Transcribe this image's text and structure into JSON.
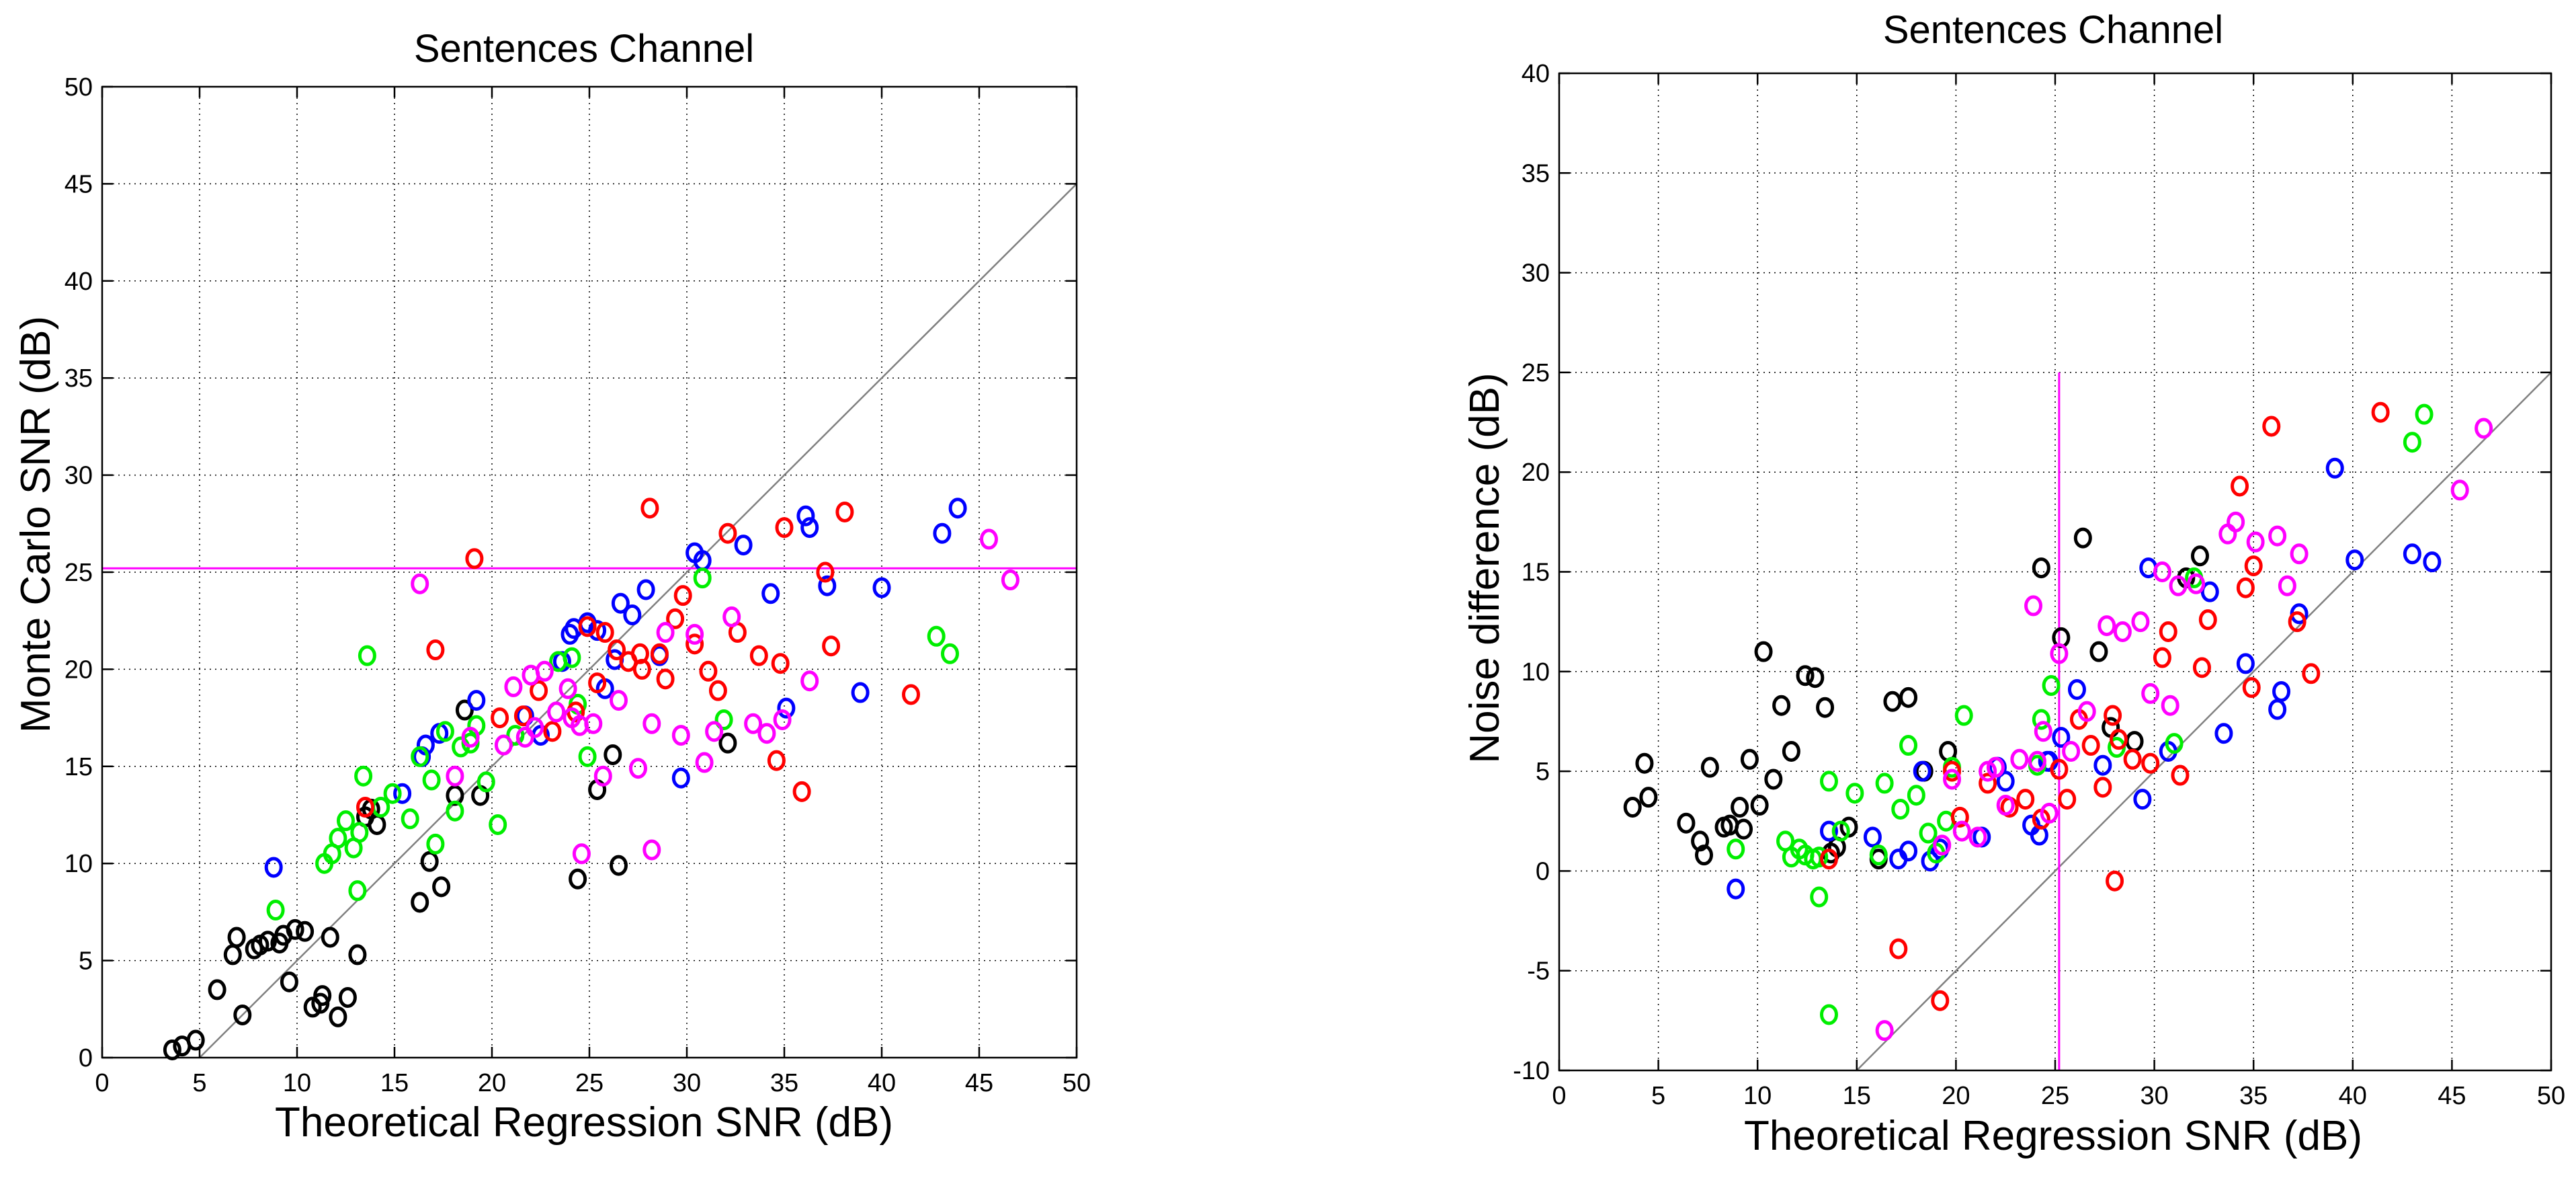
{
  "chart_data": [
    {
      "type": "scatter",
      "title": "Sentences Channel",
      "xlabel": "Theoretical Regression SNR (dB)",
      "ylabel": "Monte Carlo SNR (dB)",
      "xlim": [
        0,
        50
      ],
      "ylim": [
        0,
        50
      ],
      "xticks": [
        0,
        5,
        10,
        15,
        20,
        25,
        30,
        35,
        40,
        45,
        50
      ],
      "yticks": [
        0,
        5,
        10,
        15,
        20,
        25,
        30,
        35,
        40,
        45,
        50
      ],
      "grid": true,
      "marker": "circle",
      "colors": {
        "black": "#000000",
        "blue": "#0000ff",
        "green": "#00ee00",
        "red": "#ff0000",
        "magenta": "#ff00ff",
        "reference": "#808080"
      },
      "reference_line": {
        "x": [
          5,
          50
        ],
        "y": [
          0,
          45
        ]
      },
      "hline": {
        "y": 25.2,
        "color": "#ff00ff"
      },
      "series": [
        {
          "name": "black",
          "x": [
            3.6,
            4.1,
            4.8,
            5.9,
            6.7,
            6.9,
            7.2,
            7.8,
            8.1,
            8.5,
            9.1,
            9.3,
            9.6,
            9.9,
            10.4,
            10.8,
            11.3,
            11.7,
            12.1,
            12.6,
            13.1,
            13.5,
            14.1,
            16.3,
            16.8,
            17.4,
            18.1,
            18.6,
            19.4,
            25.4,
            26.2,
            26.5,
            32.1,
            24.4,
            13.8,
            11.2
          ],
          "y": [
            0.4,
            0.6,
            0.9,
            3.5,
            5.3,
            6.2,
            2.2,
            5.6,
            5.8,
            6.0,
            5.9,
            6.3,
            3.9,
            6.6,
            6.5,
            2.6,
            3.2,
            6.2,
            2.1,
            3.1,
            5.3,
            12.4,
            12.0,
            8.0,
            10.1,
            8.8,
            13.5,
            17.9,
            13.5,
            13.8,
            15.6,
            9.9,
            16.2,
            9.2,
            12.8,
            2.8
          ]
        },
        {
          "name": "blue",
          "x": [
            8.8,
            15.4,
            16.6,
            17.3,
            19.2,
            21.7,
            22.5,
            23.6,
            24.0,
            24.9,
            25.4,
            25.8,
            26.3,
            26.6,
            27.2,
            27.9,
            29.7,
            30.4,
            30.8,
            32.9,
            34.3,
            35.1,
            36.1,
            36.3,
            37.2,
            38.9,
            40.0,
            43.1,
            43.9,
            16.4,
            24.2,
            28.6
          ],
          "y": [
            9.8,
            13.6,
            16.1,
            16.7,
            18.4,
            17.6,
            16.6,
            20.4,
            21.8,
            22.4,
            22.0,
            19.0,
            20.5,
            23.4,
            22.8,
            24.1,
            14.4,
            26.0,
            25.6,
            26.4,
            23.9,
            18.0,
            27.9,
            27.3,
            24.3,
            18.8,
            24.2,
            27.0,
            28.3,
            15.5,
            22.1,
            20.7
          ]
        },
        {
          "name": "green",
          "x": [
            8.9,
            11.4,
            11.8,
            12.1,
            12.5,
            12.9,
            13.1,
            13.4,
            13.6,
            14.3,
            14.9,
            15.8,
            16.3,
            16.9,
            17.6,
            18.1,
            18.4,
            18.9,
            19.2,
            19.7,
            20.3,
            21.2,
            23.4,
            24.1,
            24.4,
            24.9,
            30.8,
            31.9,
            42.8,
            43.5,
            13.2,
            17.1
          ],
          "y": [
            7.6,
            10.0,
            10.5,
            11.3,
            12.2,
            10.8,
            8.6,
            14.5,
            20.7,
            12.9,
            13.6,
            12.3,
            15.5,
            14.3,
            16.8,
            12.7,
            16.0,
            16.2,
            17.1,
            14.2,
            12.0,
            16.6,
            20.4,
            20.6,
            18.2,
            15.5,
            24.7,
            17.4,
            21.7,
            20.8,
            11.6,
            11.0
          ]
        },
        {
          "name": "red",
          "x": [
            13.5,
            17.1,
            19.1,
            20.4,
            21.6,
            22.4,
            23.1,
            24.3,
            24.9,
            25.4,
            25.8,
            26.4,
            27.0,
            27.7,
            28.1,
            28.6,
            29.4,
            29.8,
            30.4,
            31.1,
            31.6,
            32.1,
            32.6,
            33.7,
            34.6,
            34.8,
            35.0,
            35.9,
            37.1,
            37.4,
            38.1,
            41.5,
            27.6,
            28.9
          ],
          "y": [
            12.9,
            21.0,
            25.7,
            17.5,
            17.6,
            18.9,
            16.8,
            17.8,
            22.2,
            19.3,
            21.9,
            21.0,
            20.4,
            20.0,
            28.3,
            20.8,
            22.6,
            23.8,
            21.3,
            19.9,
            18.9,
            27.0,
            21.9,
            20.7,
            15.3,
            20.3,
            27.3,
            13.7,
            25.0,
            21.2,
            28.1,
            18.7,
            20.8,
            19.5
          ]
        },
        {
          "name": "magenta",
          "x": [
            16.3,
            18.1,
            18.9,
            20.6,
            21.1,
            21.7,
            22.2,
            22.7,
            23.3,
            23.9,
            24.1,
            24.5,
            25.2,
            25.7,
            26.5,
            27.5,
            28.2,
            28.9,
            29.7,
            30.4,
            30.9,
            31.4,
            32.3,
            33.4,
            34.1,
            34.9,
            36.3,
            45.5,
            46.6,
            28.2,
            24.6,
            22.0
          ],
          "y": [
            24.4,
            14.5,
            16.5,
            16.1,
            19.1,
            16.5,
            17.0,
            19.9,
            17.8,
            19.0,
            17.5,
            17.1,
            17.2,
            14.5,
            18.4,
            14.9,
            17.2,
            21.9,
            16.6,
            21.8,
            15.2,
            16.8,
            22.7,
            17.2,
            16.7,
            17.4,
            19.4,
            26.7,
            24.6,
            10.7,
            10.5,
            19.7
          ]
        }
      ]
    },
    {
      "type": "scatter",
      "title": "Sentences Channel",
      "xlabel": "Theoretical Regression SNR (dB)",
      "ylabel": "Noise difference (dB)",
      "xlim": [
        0,
        50
      ],
      "ylim": [
        -10,
        40
      ],
      "xticks": [
        0,
        5,
        10,
        15,
        20,
        25,
        30,
        35,
        40,
        45,
        50
      ],
      "yticks": [
        -10,
        -5,
        0,
        5,
        10,
        15,
        20,
        25,
        30,
        35,
        40
      ],
      "grid": true,
      "marker": "circle",
      "colors": {
        "black": "#000000",
        "blue": "#0000ff",
        "green": "#00ee00",
        "red": "#ff0000",
        "magenta": "#ff00ff",
        "reference": "#808080"
      },
      "reference_line": {
        "x": [
          15,
          50
        ],
        "y": [
          -10,
          25
        ]
      },
      "vline": {
        "x": 25.2,
        "y": [
          -10,
          25
        ],
        "color": "#ff00ff"
      },
      "series": [
        {
          "name": "black",
          "x": [
            3.7,
            4.3,
            4.5,
            6.4,
            7.1,
            7.3,
            7.6,
            8.3,
            8.6,
            9.1,
            9.3,
            9.6,
            10.1,
            10.3,
            10.8,
            11.2,
            11.7,
            12.4,
            12.9,
            13.4,
            14.0,
            14.6,
            16.1,
            16.8,
            17.6,
            18.4,
            19.6,
            24.3,
            25.3,
            26.4,
            27.2,
            29.0,
            31.6,
            32.3,
            27.8,
            13.7
          ],
          "y": [
            3.2,
            5.4,
            3.7,
            2.4,
            1.5,
            0.8,
            5.2,
            2.2,
            2.3,
            3.2,
            2.1,
            5.6,
            3.3,
            11.0,
            4.6,
            8.3,
            6.0,
            9.8,
            9.7,
            8.2,
            1.2,
            2.2,
            0.6,
            8.5,
            8.7,
            5.0,
            6.0,
            15.2,
            11.7,
            16.7,
            11.0,
            6.5,
            14.7,
            15.8,
            7.2,
            0.9
          ]
        },
        {
          "name": "blue",
          "x": [
            8.9,
            13.6,
            15.8,
            17.1,
            17.6,
            18.3,
            19.2,
            21.3,
            22.1,
            22.5,
            23.8,
            24.2,
            24.6,
            25.3,
            26.1,
            27.4,
            29.4,
            29.7,
            30.7,
            32.8,
            33.5,
            34.6,
            36.2,
            36.4,
            37.3,
            39.1,
            40.1,
            43.0,
            44.0,
            24.7,
            18.7
          ],
          "y": [
            -0.9,
            2.0,
            1.7,
            0.6,
            1.0,
            5.0,
            1.1,
            1.7,
            5.2,
            4.5,
            2.3,
            1.8,
            5.5,
            6.7,
            9.1,
            5.3,
            3.6,
            15.2,
            6.0,
            14.0,
            6.9,
            10.4,
            8.1,
            9.0,
            12.9,
            20.2,
            15.6,
            15.9,
            15.5,
            5.5,
            0.5
          ]
        },
        {
          "name": "green",
          "x": [
            8.9,
            11.4,
            11.7,
            12.1,
            12.4,
            12.8,
            13.1,
            13.6,
            14.2,
            14.9,
            16.1,
            16.4,
            17.2,
            17.6,
            18.0,
            18.6,
            19.0,
            19.5,
            19.8,
            20.4,
            24.1,
            24.3,
            24.8,
            28.1,
            31.0,
            32.0,
            43.0,
            43.6,
            13.6,
            13.1
          ],
          "y": [
            1.1,
            1.5,
            0.7,
            1.1,
            0.8,
            0.6,
            0.7,
            4.5,
            2.0,
            3.9,
            0.8,
            4.4,
            3.1,
            6.3,
            3.8,
            1.9,
            0.9,
            2.5,
            5.2,
            7.8,
            5.3,
            7.6,
            9.3,
            6.2,
            6.4,
            14.7,
            21.5,
            22.9,
            -7.2,
            -1.3
          ]
        },
        {
          "name": "red",
          "x": [
            13.6,
            17.1,
            19.2,
            19.8,
            20.2,
            21.6,
            22.7,
            23.5,
            24.3,
            25.2,
            25.6,
            26.2,
            26.8,
            27.4,
            27.9,
            28.2,
            28.9,
            29.8,
            30.4,
            30.7,
            31.3,
            32.4,
            32.7,
            34.3,
            34.6,
            35.0,
            35.9,
            37.2,
            37.9,
            41.4,
            34.9,
            28.0
          ],
          "y": [
            0.6,
            -3.9,
            -6.5,
            5.0,
            2.7,
            4.4,
            3.2,
            3.6,
            2.6,
            5.1,
            3.6,
            7.6,
            6.3,
            4.2,
            7.8,
            6.6,
            5.6,
            5.4,
            10.7,
            12.0,
            4.8,
            10.2,
            12.6,
            19.3,
            14.2,
            15.3,
            22.3,
            12.5,
            9.9,
            23.0,
            9.2,
            -0.5
          ]
        },
        {
          "name": "magenta",
          "x": [
            16.4,
            19.8,
            20.3,
            21.1,
            21.6,
            22.5,
            23.2,
            23.9,
            24.1,
            24.4,
            25.2,
            25.8,
            26.6,
            27.6,
            28.4,
            29.3,
            29.8,
            30.4,
            30.8,
            31.2,
            32.1,
            33.7,
            34.1,
            35.1,
            36.2,
            36.7,
            37.3,
            45.4,
            46.6,
            24.7,
            22.0,
            19.3
          ],
          "y": [
            -8.0,
            4.6,
            2.0,
            1.7,
            5.0,
            3.3,
            5.6,
            13.3,
            5.5,
            7.0,
            10.9,
            6.0,
            8.0,
            12.3,
            12.0,
            12.5,
            8.9,
            15.0,
            8.3,
            14.3,
            14.4,
            16.9,
            17.5,
            16.5,
            16.8,
            14.3,
            15.9,
            19.1,
            22.2,
            2.9,
            5.2,
            1.3
          ]
        }
      ]
    }
  ]
}
